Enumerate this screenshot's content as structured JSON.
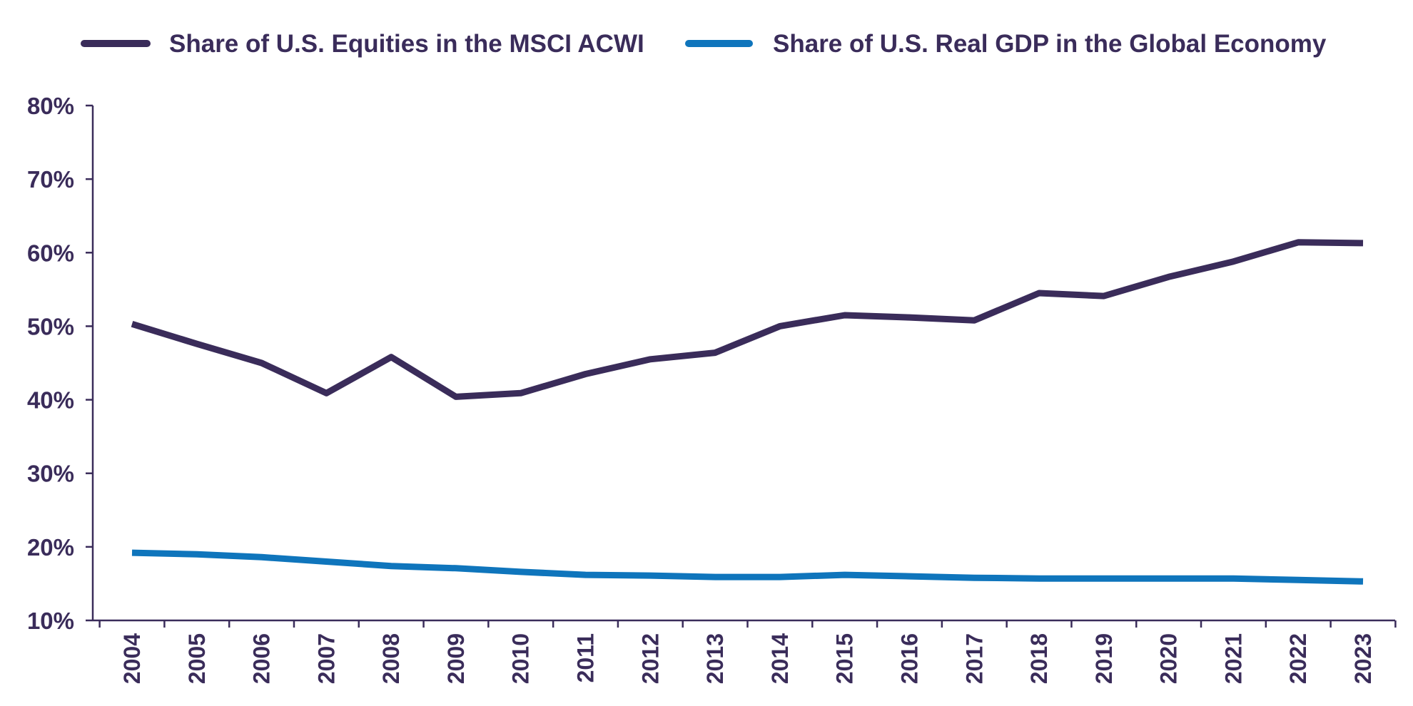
{
  "chart_data": {
    "type": "line",
    "title": "",
    "xlabel": "",
    "ylabel": "",
    "ylim": [
      10,
      80
    ],
    "y_ticks": [
      "80%",
      "70%",
      "60%",
      "50%",
      "40%",
      "30%",
      "20%",
      "10%"
    ],
    "categories": [
      "2004",
      "2005",
      "2006",
      "2007",
      "2008",
      "2009",
      "2010",
      "2011",
      "2012",
      "2013",
      "2014",
      "2015",
      "2016",
      "2017",
      "2018",
      "2019",
      "2020",
      "2021",
      "2022",
      "2023"
    ],
    "grid": false,
    "legend_position": "top",
    "series": [
      {
        "name": "Share of U.S. Equities in the MSCI ACWI",
        "color": "#3a2c5a",
        "values": [
          50.3,
          47.6,
          45.0,
          40.9,
          45.8,
          40.4,
          40.9,
          43.5,
          45.5,
          46.4,
          50.0,
          51.5,
          51.2,
          50.8,
          54.5,
          54.1,
          56.7,
          58.8,
          61.4,
          61.3
        ]
      },
      {
        "name": "Share of U.S. Real GDP in the Global Economy",
        "color": "#0f75bc",
        "values": [
          19.2,
          19.0,
          18.6,
          18.0,
          17.4,
          17.1,
          16.6,
          16.2,
          16.1,
          15.9,
          15.9,
          16.2,
          16.0,
          15.8,
          15.7,
          15.7,
          15.7,
          15.7,
          15.5,
          15.3
        ]
      }
    ]
  }
}
